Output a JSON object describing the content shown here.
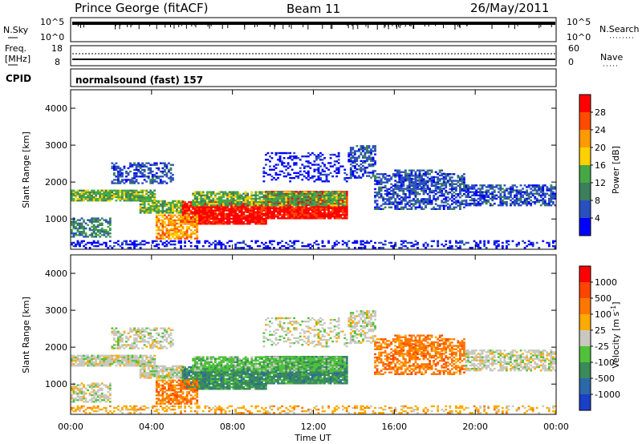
{
  "header": {
    "station": "Prince George (fitACF)",
    "beam": "Beam 11",
    "date": "26/May/2011"
  },
  "noise_panel": {
    "left_label": "N.Sky",
    "right_label": "N.Search",
    "left_ticks": [
      "10^5",
      "10^0"
    ],
    "right_ticks": [
      "10^5",
      "10^0"
    ]
  },
  "freq_panel": {
    "left_label_1": "Freq.",
    "left_label_2": "[MHz]",
    "left_ticks": [
      "18",
      "8"
    ],
    "right_label": "Nave",
    "right_ticks": [
      "60",
      "0"
    ]
  },
  "cpid_panel": {
    "label": "CPID",
    "text": "normalsound (fast) 157"
  },
  "x_axis": {
    "label": "Time UT",
    "ticks": [
      "00:00",
      "04:00",
      "08:00",
      "12:00",
      "16:00",
      "20:00",
      "00:00"
    ]
  },
  "chart_data": [
    {
      "type": "heatmap",
      "title": "",
      "xlabel": "Time UT",
      "ylabel": "Slant Range [km]",
      "xlim": [
        0,
        24
      ],
      "ylim": [
        180,
        4500
      ],
      "y_ticks": [
        "1000",
        "2000",
        "3000",
        "4000"
      ],
      "colorbar": {
        "label": "Power [dB]",
        "ticks": [
          "4",
          "8",
          "12",
          "16",
          "20",
          "24",
          "28"
        ],
        "colors": [
          "#0000ff",
          "#2a4fbf",
          "#3c7f5c",
          "#45a845",
          "#ffd000",
          "#ff9a00",
          "#ff4b00",
          "#ff0000"
        ]
      }
    },
    {
      "type": "heatmap",
      "title": "",
      "xlabel": "Time UT",
      "ylabel": "Slant Range [km]",
      "xlim": [
        0,
        24
      ],
      "ylim": [
        180,
        4500
      ],
      "y_ticks": [
        "1000",
        "2000",
        "3000",
        "4000"
      ],
      "colorbar": {
        "label": "Velocity [m s^-1]",
        "ticks": [
          "1000",
          "500",
          "100",
          "25",
          "-25",
          "-100",
          "-500",
          "-1000"
        ],
        "colors": [
          "#1a3fc8",
          "#2a68a8",
          "#3a8a5a",
          "#4fc23a",
          "#c8c8c0",
          "#ffaa00",
          "#ff7700",
          "#ff4400",
          "#ff0000"
        ]
      }
    }
  ]
}
